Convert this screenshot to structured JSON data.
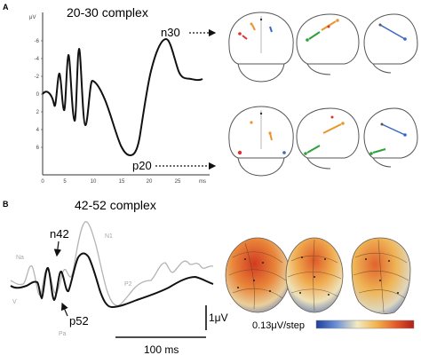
{
  "panel_a": {
    "label": "A",
    "title": "20-30 complex",
    "y_unit": "μV",
    "x_unit": "ms",
    "y_ticks": [
      "-6",
      "-4",
      "-2",
      "0",
      "2",
      "4",
      "6"
    ],
    "x_ticks": [
      "0",
      "5",
      "10",
      "15",
      "20",
      "25"
    ],
    "peak_upper": "n30",
    "peak_lower": "p20"
  },
  "panel_b": {
    "label": "B",
    "title": "42-52 complex",
    "peak_n42": "n42",
    "peak_p52": "p52",
    "gray_labels": [
      "Na",
      "N1",
      "Pa",
      "P2",
      "V"
    ],
    "scale_voltage": "1μV",
    "scale_time": "100 ms",
    "colorbar_label": "0.13μV/step"
  },
  "colors": {
    "trace": "#111111",
    "trace_gray": "#b4b4b4",
    "head_outline": "#555555",
    "scalp_red": "#cf3a24",
    "scalp_orange": "#e58f3a",
    "scalp_blue": "#3a5cb0"
  }
}
